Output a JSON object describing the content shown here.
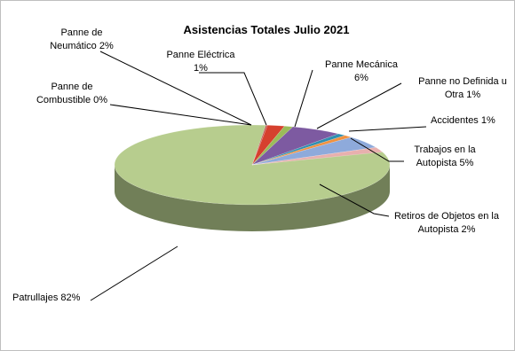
{
  "chart_data": {
    "type": "pie",
    "title": "Asistencias  Totales Julio 2021",
    "categories": [
      "Patrullajes 82%",
      "Panne de Combustible 0%",
      "Panne de Neumático 2%",
      "Panne Eléctrica 1%",
      "Panne Mecánica 6%",
      "Panne no Definida u Otra 1%",
      "Accidentes 1%",
      "Trabajos en la Autopista 5%",
      "Retiros de Objetos en la Autopista 2%"
    ],
    "values": [
      82,
      0,
      2,
      1,
      6,
      1,
      1,
      5,
      2
    ],
    "colors": [
      "#b7cd8e",
      "#c0504d",
      "#d6402e",
      "#9bbb59",
      "#7d5aa1",
      "#2f8fb0",
      "#f0913f",
      "#8eaadb",
      "#e8b0ae"
    ],
    "labels_3d": true,
    "legend": "none"
  }
}
